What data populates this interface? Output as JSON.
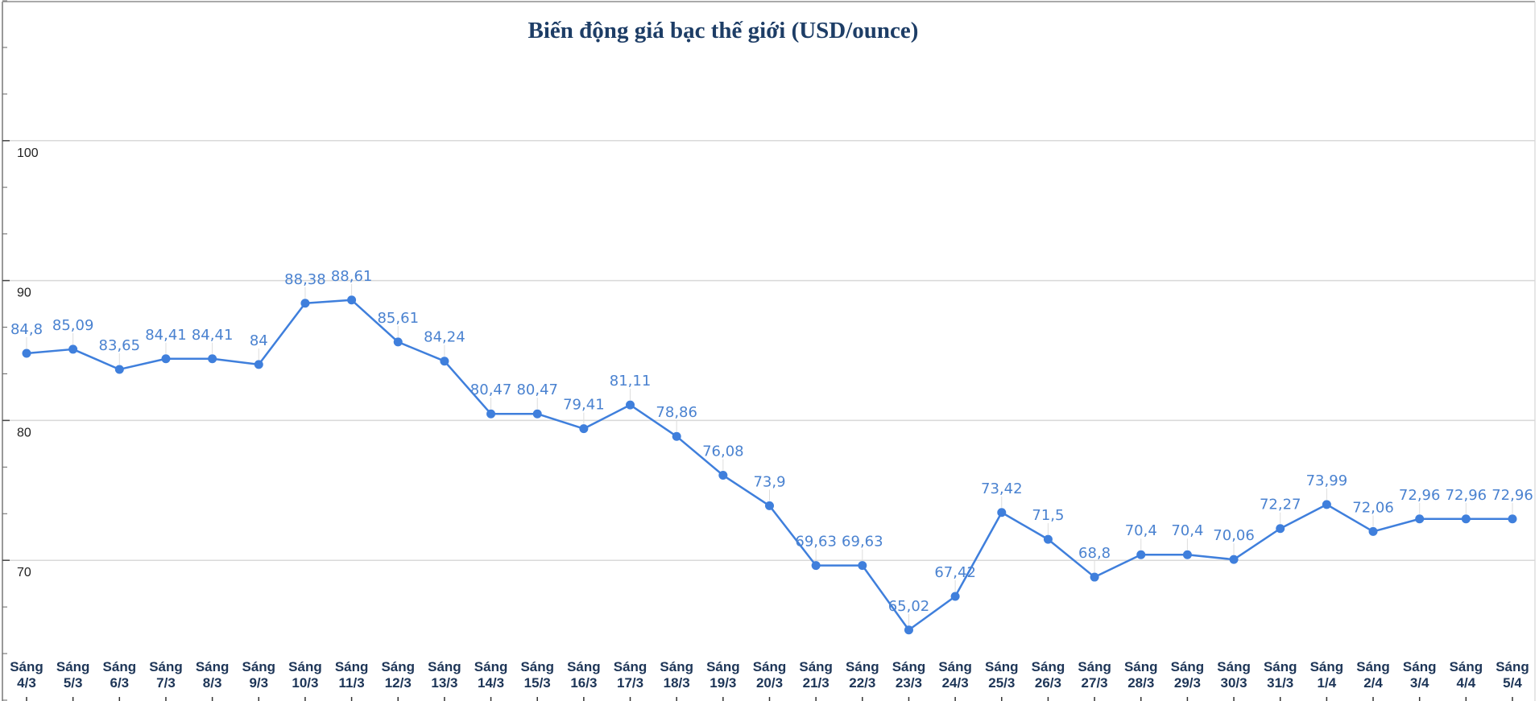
{
  "chart_data": {
    "type": "line",
    "title": "Biến động giá bạc thế giới (USD/ounce)",
    "xlabel": "",
    "ylabel": "",
    "ylim": [
      60,
      110
    ],
    "yticks": [
      70,
      80,
      90,
      100
    ],
    "grid": true,
    "categories": [
      [
        "Sáng",
        "4/3"
      ],
      [
        "Sáng",
        "5/3"
      ],
      [
        "Sáng",
        "6/3"
      ],
      [
        "Sáng",
        "7/3"
      ],
      [
        "Sáng",
        "8/3"
      ],
      [
        "Sáng",
        "9/3"
      ],
      [
        "Sáng",
        "10/3"
      ],
      [
        "Sáng",
        "11/3"
      ],
      [
        "Sáng",
        "12/3"
      ],
      [
        "Sáng",
        "13/3"
      ],
      [
        "Sáng",
        "14/3"
      ],
      [
        "Sáng",
        "15/3"
      ],
      [
        "Sáng",
        "16/3"
      ],
      [
        "Sáng",
        "17/3"
      ],
      [
        "Sáng",
        "18/3"
      ],
      [
        "Sáng",
        "19/3"
      ],
      [
        "Sáng",
        "20/3"
      ],
      [
        "Sáng",
        "21/3"
      ],
      [
        "Sáng",
        "22/3"
      ],
      [
        "Sáng",
        "23/3"
      ],
      [
        "Sáng",
        "24/3"
      ],
      [
        "Sáng",
        "25/3"
      ],
      [
        "Sáng",
        "26/3"
      ],
      [
        "Sáng",
        "27/3"
      ],
      [
        "Sáng",
        "28/3"
      ],
      [
        "Sáng",
        "29/3"
      ],
      [
        "Sáng",
        "30/3"
      ],
      [
        "Sáng",
        "31/3"
      ],
      [
        "Sáng",
        "1/4"
      ],
      [
        "Sáng",
        "2/4"
      ],
      [
        "Sáng",
        "3/4"
      ],
      [
        "Sáng",
        "4/4"
      ],
      [
        "Sáng",
        "5/4"
      ]
    ],
    "values": [
      84.8,
      85.09,
      83.65,
      84.41,
      84.41,
      84,
      88.38,
      88.61,
      85.61,
      84.24,
      80.47,
      80.47,
      79.41,
      81.11,
      78.86,
      76.08,
      73.9,
      69.63,
      69.63,
      65.02,
      67.42,
      73.42,
      71.5,
      68.8,
      70.4,
      70.4,
      70.06,
      72.27,
      73.99,
      72.06,
      72.96,
      72.96,
      72.96
    ],
    "value_labels": [
      "84,8",
      "85,09",
      "83,65",
      "84,41",
      "84,41",
      "84",
      "88,38",
      "88,61",
      "85,61",
      "84,24",
      "80,47",
      "80,47",
      "79,41",
      "81,11",
      "78,86",
      "76,08",
      "73,9",
      "69,63",
      "69,63",
      "65,02",
      "67,42",
      "73,42",
      "71,5",
      "68,8",
      "70,4",
      "70,4",
      "70,06",
      "72,27",
      "73,99",
      "72,06",
      "72,96",
      "72,96",
      "72,96"
    ],
    "colors": {
      "line": "#3f7fdc",
      "title": "#1d3d66",
      "xtick": "#1d3557",
      "label": "#4a82d0",
      "grid": "#d9d9d9"
    }
  }
}
